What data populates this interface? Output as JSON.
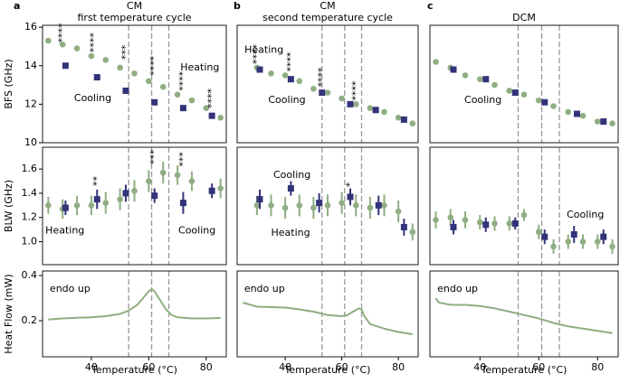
{
  "chart_data": [
    {
      "type": "scatter",
      "panel_label": "a",
      "title": [
        "CM",
        "first temperature cycle"
      ],
      "ylabel": "BFS (GHz)",
      "xlim": [
        23,
        87
      ],
      "ylim": [
        10,
        16.1
      ],
      "yticks": [
        10,
        12,
        14,
        16
      ],
      "vlines": [
        53,
        61,
        67
      ],
      "series": [
        {
          "marker": "circle",
          "color": "#8fae83",
          "x": [
            25,
            30,
            35,
            40,
            45,
            50,
            55,
            60,
            65,
            70,
            75,
            80,
            85
          ],
          "values": [
            15.3,
            15.1,
            14.9,
            14.5,
            14.3,
            13.9,
            13.6,
            13.2,
            12.9,
            12.5,
            12.2,
            11.8,
            11.3
          ]
        },
        {
          "marker": "square",
          "color": "#33337a",
          "x": [
            31,
            42,
            52,
            62,
            72,
            82
          ],
          "values": [
            14.0,
            13.4,
            12.7,
            12.1,
            11.8,
            11.4
          ]
        }
      ],
      "annotations": [
        {
          "text": "Heating",
          "x": 71,
          "y": 13.9,
          "color": "#8fae83"
        },
        {
          "text": "Cooling",
          "x": 34,
          "y": 12.3,
          "color": "#33337a"
        }
      ],
      "significance": [
        {
          "label": "****",
          "x": 30,
          "y": 15.7
        },
        {
          "label": "****",
          "x": 41,
          "y": 15.2
        },
        {
          "label": "***",
          "x": 52,
          "y": 14.7
        },
        {
          "label": "****",
          "x": 62,
          "y": 14.0
        },
        {
          "label": "****",
          "x": 72,
          "y": 13.2
        },
        {
          "label": "****",
          "x": 82,
          "y": 12.3
        }
      ]
    },
    {
      "type": "scatter",
      "panel_label": "b",
      "title": [
        "CM",
        "second temperature cycle"
      ],
      "xlim": [
        23,
        87
      ],
      "ylim": [
        10,
        16.1
      ],
      "vlines": [
        53,
        61,
        67
      ],
      "series": [
        {
          "marker": "circle",
          "color": "#8fae83",
          "x": [
            30,
            35,
            40,
            45,
            50,
            55,
            60,
            65,
            70,
            75,
            80,
            85
          ],
          "values": [
            13.9,
            13.6,
            13.5,
            13.2,
            12.8,
            12.6,
            12.3,
            12.0,
            11.8,
            11.6,
            11.3,
            11.0
          ]
        },
        {
          "marker": "square",
          "color": "#33337a",
          "x": [
            31,
            42,
            53,
            63,
            72,
            82
          ],
          "values": [
            13.8,
            13.3,
            12.6,
            12.0,
            11.7,
            11.2
          ]
        }
      ],
      "annotations": [
        {
          "text": "Heating",
          "x": 25.6,
          "y": 14.8,
          "color": "#8fae83"
        },
        {
          "text": "Cooling",
          "x": 34,
          "y": 12.2,
          "color": "#33337a"
        }
      ],
      "significance": [
        {
          "label": "****",
          "x": 30,
          "y": 14.6
        },
        {
          "label": "****",
          "x": 42,
          "y": 14.2
        },
        {
          "label": "****",
          "x": 53,
          "y": 13.4
        },
        {
          "label": "****",
          "x": 65,
          "y": 12.7
        }
      ]
    },
    {
      "type": "scatter",
      "panel_label": "c",
      "title": [
        "DCM"
      ],
      "xlim": [
        23,
        87
      ],
      "ylim": [
        10,
        16.1
      ],
      "vlines": [
        53,
        61,
        67
      ],
      "series": [
        {
          "marker": "circle",
          "color": "#8fae83",
          "x": [
            25,
            30,
            35,
            40,
            45,
            50,
            55,
            60,
            65,
            70,
            75,
            80,
            85
          ],
          "values": [
            14.2,
            13.9,
            13.5,
            13.3,
            13.0,
            12.7,
            12.5,
            12.2,
            11.9,
            11.6,
            11.4,
            11.1,
            11.0
          ]
        },
        {
          "marker": "square",
          "color": "#33337a",
          "x": [
            31,
            42,
            52,
            62,
            73,
            82
          ],
          "values": [
            13.8,
            13.3,
            12.6,
            12.1,
            11.5,
            11.1
          ]
        }
      ],
      "annotations": [
        {
          "text": "Cooling",
          "x": 34.7,
          "y": 12.2,
          "color": "#33337a"
        }
      ]
    },
    {
      "type": "errorbar",
      "ylabel": "BLW (GHz)",
      "xlim": [
        23,
        87
      ],
      "ylim": [
        0.81,
        1.78
      ],
      "yticks": [
        {
          "value": 1,
          "label": "1.0"
        },
        1.2,
        1.4,
        1.6
      ],
      "vlines": [
        53,
        61,
        67
      ],
      "series": [
        {
          "marker": "circle",
          "color": "#8fae83",
          "x": [
            25,
            30,
            35,
            40,
            45,
            50,
            55,
            60,
            65,
            70,
            75,
            85
          ],
          "values": [
            1.3,
            1.27,
            1.3,
            1.3,
            1.32,
            1.35,
            1.42,
            1.5,
            1.57,
            1.55,
            1.5,
            1.44
          ],
          "errors": [
            0.07,
            0.08,
            0.08,
            0.08,
            0.09,
            0.09,
            0.09,
            0.09,
            0.09,
            0.08,
            0.08,
            0.08
          ]
        },
        {
          "marker": "square",
          "color": "#33337a",
          "x": [
            31,
            42,
            52,
            62,
            72,
            82
          ],
          "values": [
            1.28,
            1.35,
            1.4,
            1.38,
            1.32,
            1.42
          ],
          "errors": [
            0.06,
            0.08,
            0.07,
            0.06,
            0.09,
            0.06
          ]
        }
      ],
      "annotations": [
        {
          "text": "Heating",
          "x": 24,
          "y": 1.09,
          "color": "#8fae83"
        },
        {
          "text": "Cooling",
          "x": 70.3,
          "y": 1.09,
          "color": "#33337a"
        }
      ],
      "significance": [
        {
          "label": "**",
          "x": 42,
          "y": 1.5
        },
        {
          "label": "***",
          "x": 62,
          "y": 1.7
        },
        {
          "label": "***",
          "x": 72,
          "y": 1.68
        }
      ]
    },
    {
      "type": "errorbar",
      "xlim": [
        23,
        87
      ],
      "ylim": [
        0.81,
        1.78
      ],
      "vlines": [
        53,
        61,
        67
      ],
      "series": [
        {
          "marker": "circle",
          "color": "#8fae83",
          "x": [
            30,
            35,
            40,
            45,
            50,
            55,
            60,
            65,
            70,
            75,
            80,
            85
          ],
          "values": [
            1.3,
            1.3,
            1.28,
            1.3,
            1.28,
            1.3,
            1.32,
            1.3,
            1.28,
            1.3,
            1.25,
            1.08
          ],
          "errors": [
            0.08,
            0.09,
            0.09,
            0.09,
            0.09,
            0.09,
            0.09,
            0.09,
            0.09,
            0.09,
            0.09,
            0.07
          ]
        },
        {
          "marker": "square",
          "color": "#33337a",
          "x": [
            31,
            42,
            52,
            63,
            73,
            82
          ],
          "values": [
            1.35,
            1.44,
            1.32,
            1.37,
            1.3,
            1.12
          ],
          "errors": [
            0.08,
            0.06,
            0.08,
            0.07,
            0.08,
            0.07
          ]
        }
      ],
      "annotations": [
        {
          "text": "Cooling",
          "x": 35.8,
          "y": 1.55,
          "color": "#33337a"
        },
        {
          "text": "Heating",
          "x": 35,
          "y": 1.07,
          "color": "#8fae83"
        }
      ],
      "significance": [
        {
          "label": "*",
          "x": 63,
          "y": 1.47
        }
      ]
    },
    {
      "type": "errorbar",
      "xlim": [
        23,
        87
      ],
      "ylim": [
        0.81,
        1.78
      ],
      "vlines": [
        53,
        61,
        67
      ],
      "series": [
        {
          "marker": "circle",
          "color": "#8fae83",
          "x": [
            25,
            30,
            35,
            40,
            45,
            50,
            55,
            60,
            65,
            70,
            75,
            80,
            85
          ],
          "values": [
            1.18,
            1.2,
            1.18,
            1.16,
            1.15,
            1.15,
            1.22,
            1.08,
            0.96,
            1.0,
            1.0,
            1.0,
            0.96
          ],
          "errors": [
            0.07,
            0.07,
            0.07,
            0.06,
            0.06,
            0.06,
            0.05,
            0.06,
            0.06,
            0.06,
            0.06,
            0.06,
            0.06
          ]
        },
        {
          "marker": "square",
          "color": "#33337a",
          "x": [
            31,
            42,
            52,
            62,
            72,
            82
          ],
          "values": [
            1.12,
            1.14,
            1.15,
            1.04,
            1.06,
            1.04
          ],
          "errors": [
            0.06,
            0.06,
            0.05,
            0.06,
            0.07,
            0.06
          ]
        }
      ],
      "annotations": [
        {
          "text": "Cooling",
          "x": 69.5,
          "y": 1.22,
          "color": "#33337a"
        }
      ]
    },
    {
      "type": "line",
      "ylabel": "Heat Flow (mW)",
      "xlabel": "Temperature (°C)",
      "xlim": [
        23,
        87
      ],
      "ylim": [
        0.04,
        0.42
      ],
      "xticks": [
        40,
        60,
        80
      ],
      "yticks": [
        0.2,
        0.4
      ],
      "vlines": [
        53,
        61,
        67
      ],
      "series": [
        {
          "color": "#8fae83",
          "x": [
            25,
            30,
            35,
            40,
            45,
            50,
            53,
            56,
            58,
            60,
            61,
            62,
            64,
            66,
            68,
            70,
            75,
            80,
            85
          ],
          "values": [
            0.205,
            0.21,
            0.213,
            0.215,
            0.22,
            0.23,
            0.245,
            0.27,
            0.3,
            0.33,
            0.34,
            0.33,
            0.29,
            0.25,
            0.225,
            0.215,
            0.21,
            0.21,
            0.212
          ]
        }
      ],
      "annotations": [
        {
          "text": "endo up",
          "x": 25.5,
          "y": 0.34,
          "color": "#000000"
        }
      ]
    },
    {
      "type": "line",
      "xlabel": "Temperature (°C)",
      "xlim": [
        23,
        87
      ],
      "ylim": [
        0.04,
        0.42
      ],
      "xticks": [
        40,
        60,
        80
      ],
      "vlines": [
        53,
        61,
        67
      ],
      "series": [
        {
          "color": "#8fae83",
          "x": [
            25,
            30,
            35,
            40,
            45,
            50,
            55,
            60,
            62,
            64,
            66,
            67,
            68,
            70,
            75,
            80,
            85
          ],
          "values": [
            0.28,
            0.262,
            0.26,
            0.258,
            0.25,
            0.24,
            0.225,
            0.22,
            0.225,
            0.24,
            0.255,
            0.25,
            0.22,
            0.185,
            0.165,
            0.15,
            0.14
          ]
        }
      ],
      "annotations": [
        {
          "text": "endo up",
          "x": 25.5,
          "y": 0.34,
          "color": "#000000"
        }
      ]
    },
    {
      "type": "line",
      "xlabel": "Temperature (°C)",
      "xlim": [
        23,
        87
      ],
      "ylim": [
        0.04,
        0.42
      ],
      "xticks": [
        40,
        60,
        80
      ],
      "vlines": [
        53,
        61,
        67
      ],
      "series": [
        {
          "color": "#8fae83",
          "x": [
            25,
            26,
            30,
            35,
            40,
            45,
            50,
            55,
            60,
            65,
            70,
            75,
            80,
            85
          ],
          "values": [
            0.3,
            0.28,
            0.27,
            0.27,
            0.265,
            0.255,
            0.24,
            0.225,
            0.21,
            0.19,
            0.175,
            0.165,
            0.155,
            0.145
          ]
        }
      ],
      "annotations": [
        {
          "text": "endo up",
          "x": 25.5,
          "y": 0.34,
          "color": "#000000"
        }
      ]
    }
  ]
}
